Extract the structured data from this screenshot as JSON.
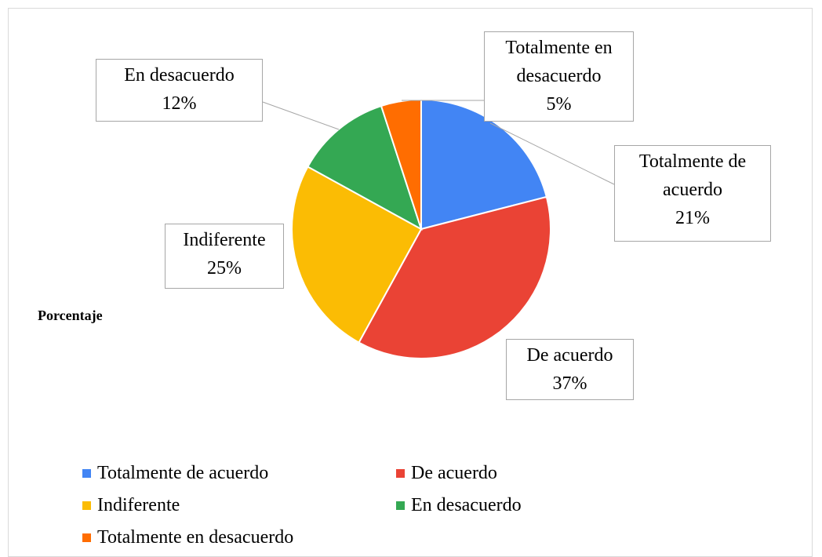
{
  "chart_data": {
    "type": "pie",
    "title": "Porcentaje",
    "categories": [
      "Totalmente de acuerdo",
      "De acuerdo",
      "Indiferente",
      "En desacuerdo",
      "Totalmente en desacuerdo"
    ],
    "values": [
      21,
      37,
      25,
      12,
      5
    ],
    "value_labels": [
      "21%",
      "37%",
      "25%",
      "12%",
      "5%"
    ],
    "colors": [
      "#4285f4",
      "#ea4335",
      "#fbbc04",
      "#34a853",
      "#ff6d01"
    ],
    "legend": "bottom"
  }
}
